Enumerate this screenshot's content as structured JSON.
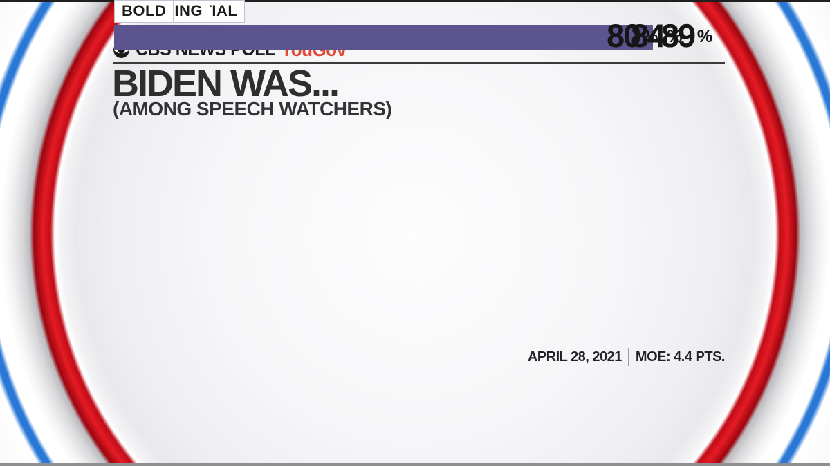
{
  "header": {
    "brand": "CBS NEWS POLL",
    "partner": "YouGov",
    "partner_color": "#e04a35"
  },
  "title": "BIDEN WAS...",
  "subtitle": "(AMONG SPEECH WATCHERS)",
  "footer": {
    "date": "APRIL 28, 2021",
    "moe": "MOE: 4.4 PTS."
  },
  "colors": {
    "bar": "#5b548f",
    "ring_red": "#cf101a",
    "ring_blue": "#2a78d6",
    "ink": "#2e2e2e"
  },
  "chart_data": {
    "type": "bar",
    "orientation": "horizontal",
    "title": "BIDEN WAS...",
    "subtitle": "(AMONG SPEECH WATCHERS)",
    "source": "CBS NEWS POLL / YouGov",
    "categories": [
      "PRESIDENTIAL",
      "CARING",
      "INSPIRING",
      "BOLD"
    ],
    "values": [
      89,
      89,
      84,
      80
    ],
    "unit": "%",
    "xlim": [
      0,
      100
    ],
    "grid": false,
    "legend": false,
    "bar_color": "#5b548f",
    "annotations": [
      "APRIL 28, 2021",
      "MOE: 4.4 PTS."
    ]
  }
}
